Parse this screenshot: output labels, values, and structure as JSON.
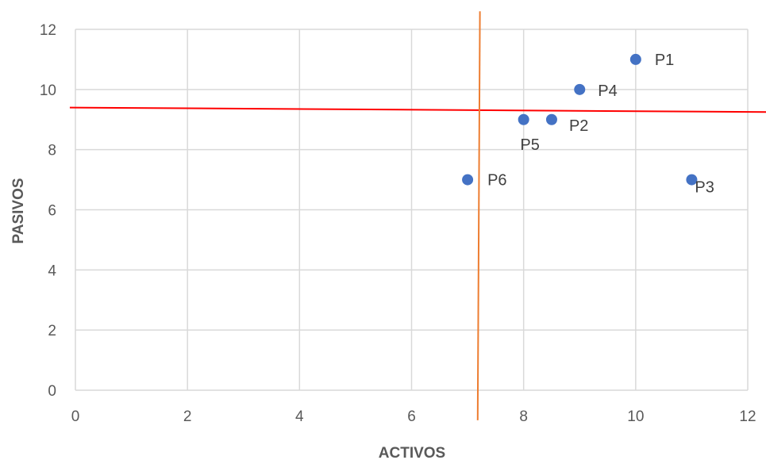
{
  "chart_data": {
    "type": "scatter",
    "title": "",
    "xlabel": "ACTIVOS",
    "ylabel": "PASIVOS",
    "xlim": [
      0,
      12
    ],
    "ylim": [
      0,
      12
    ],
    "xticks": [
      "0",
      "2",
      "4",
      "6",
      "8",
      "10",
      "12"
    ],
    "yticks": [
      "0",
      "2",
      "4",
      "6",
      "8",
      "10",
      "12"
    ],
    "grid": true,
    "legend": "none",
    "point_color": "#4472c4",
    "points": [
      {
        "label": "P1",
        "x": 10,
        "y": 11
      },
      {
        "label": "P2",
        "x": 8.5,
        "y": 9
      },
      {
        "label": "P3",
        "x": 11,
        "y": 7
      },
      {
        "label": "P4",
        "x": 9,
        "y": 10
      },
      {
        "label": "P5",
        "x": 8,
        "y": 9
      },
      {
        "label": "P6",
        "x": 7,
        "y": 7
      }
    ],
    "reference_lines": [
      {
        "name": "horizontal",
        "color": "#ff0000",
        "from": {
          "x": -0.1,
          "y": 9.4
        },
        "to": {
          "x": 12.35,
          "y": 9.25
        }
      },
      {
        "name": "vertical",
        "color": "#ed7d31",
        "from": {
          "x": 7.22,
          "y": 12.6
        },
        "to": {
          "x": 7.18,
          "y": -1.0
        }
      }
    ]
  }
}
